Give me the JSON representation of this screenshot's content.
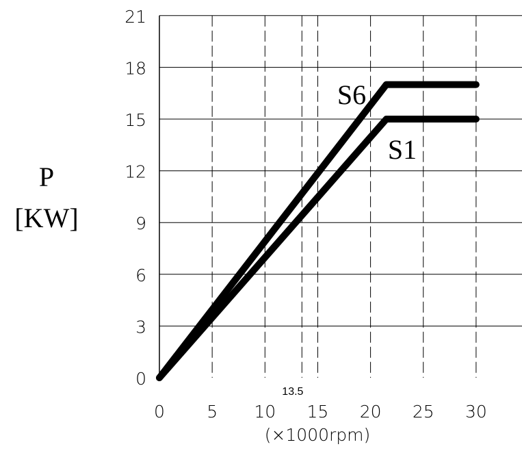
{
  "chart_data": {
    "type": "line",
    "ylabel_line1": "P",
    "ylabel_line2": "[KW]",
    "xlabel": "(×1000rpm)",
    "xlim": [
      0,
      33
    ],
    "ylim": [
      0,
      21
    ],
    "x_ticks": [
      0,
      5,
      10,
      15,
      20,
      25,
      30
    ],
    "y_ticks": [
      0,
      3,
      6,
      9,
      12,
      15,
      18,
      21
    ],
    "annotation": {
      "text": "13.5",
      "x": 13.5
    },
    "grid": true,
    "series": [
      {
        "name": "S6",
        "x": [
          0,
          21.5,
          30
        ],
        "y": [
          0,
          17,
          17
        ]
      },
      {
        "name": "S1",
        "x": [
          0,
          21.5,
          30
        ],
        "y": [
          0,
          15,
          15
        ]
      }
    ]
  }
}
